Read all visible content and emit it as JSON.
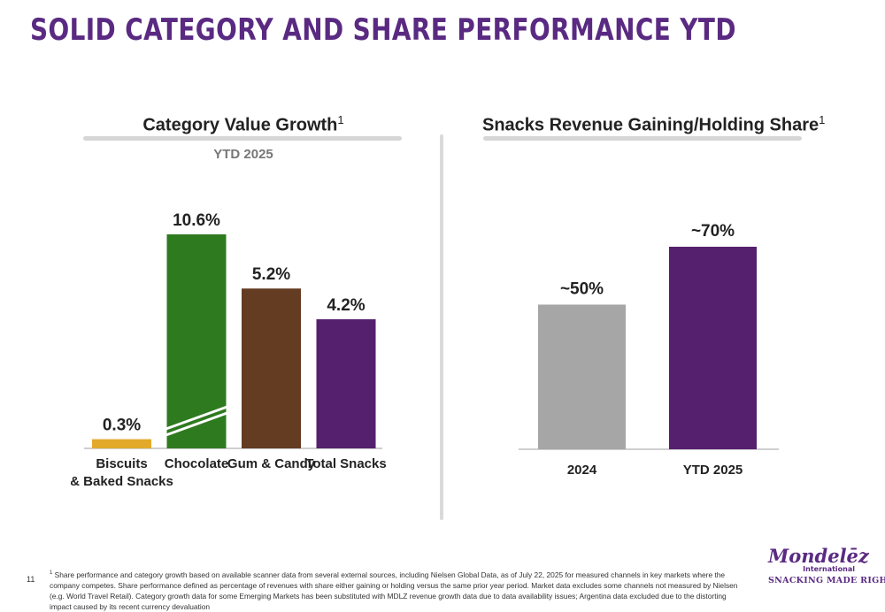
{
  "page": {
    "title": "SOLID CATEGORY AND SHARE PERFORMANCE YTD",
    "page_number": "11"
  },
  "left_panel": {
    "title": "Category Value Growth",
    "title_superscript": "1",
    "subtitle": "YTD 2025"
  },
  "right_panel": {
    "title": "Snacks Revenue Gaining/Holding Share",
    "title_superscript": "1"
  },
  "footnote": {
    "marker": "1",
    "text": "Share performance and category growth based on available scanner data from several external sources, including Nielsen Global Data, as of July 22, 2025 for measured channels in key markets where the company competes. Share performance defined as percentage of revenues with share either gaining or holding versus the same prior year period. Market data excludes some channels not measured by Nielsen (e.g. World Travel Retail). Category growth data for some Emerging Markets has been substituted with MDLZ revenue growth data due to data availability issues; Argentina data excluded due to the distorting impact caused by its recent currency devaluation"
  },
  "logo": {
    "name": "Mondelēz",
    "sub": "International",
    "tagline": "SNACKING MADE RIGHT"
  },
  "colors": {
    "title": "#5a2a82",
    "biscuits": "#e2a92a",
    "chocolate": "#2e7a1f",
    "gum_candy": "#633c22",
    "total_snacks": "#55206e",
    "gray_bar": "#a6a6a6",
    "purple_bar": "#55206e"
  },
  "chart_data": [
    {
      "type": "bar",
      "title": "Category Value Growth",
      "subtitle": "YTD 2025",
      "categories": [
        "Biscuits\n& Baked Snacks",
        "Chocolate",
        "Gum & Candy",
        "Total Snacks"
      ],
      "values": [
        0.3,
        10.6,
        5.2,
        4.2
      ],
      "data_labels": [
        "0.3%",
        "10.6%",
        "5.2%",
        "4.2%"
      ],
      "colors": [
        "#e2a92a",
        "#2e7a1f",
        "#633c22",
        "#55206e"
      ],
      "axis_break_on": "Chocolate",
      "unit": "%",
      "grid": false,
      "y_axis_visible": false
    },
    {
      "type": "bar",
      "title": "Snacks Revenue Gaining/Holding Share",
      "categories": [
        "2024",
        "YTD 2025"
      ],
      "values": [
        50,
        70
      ],
      "data_labels": [
        "~50%",
        "~70%"
      ],
      "colors": [
        "#a6a6a6",
        "#55206e"
      ],
      "unit": "%",
      "grid": false,
      "y_axis_visible": false
    }
  ]
}
